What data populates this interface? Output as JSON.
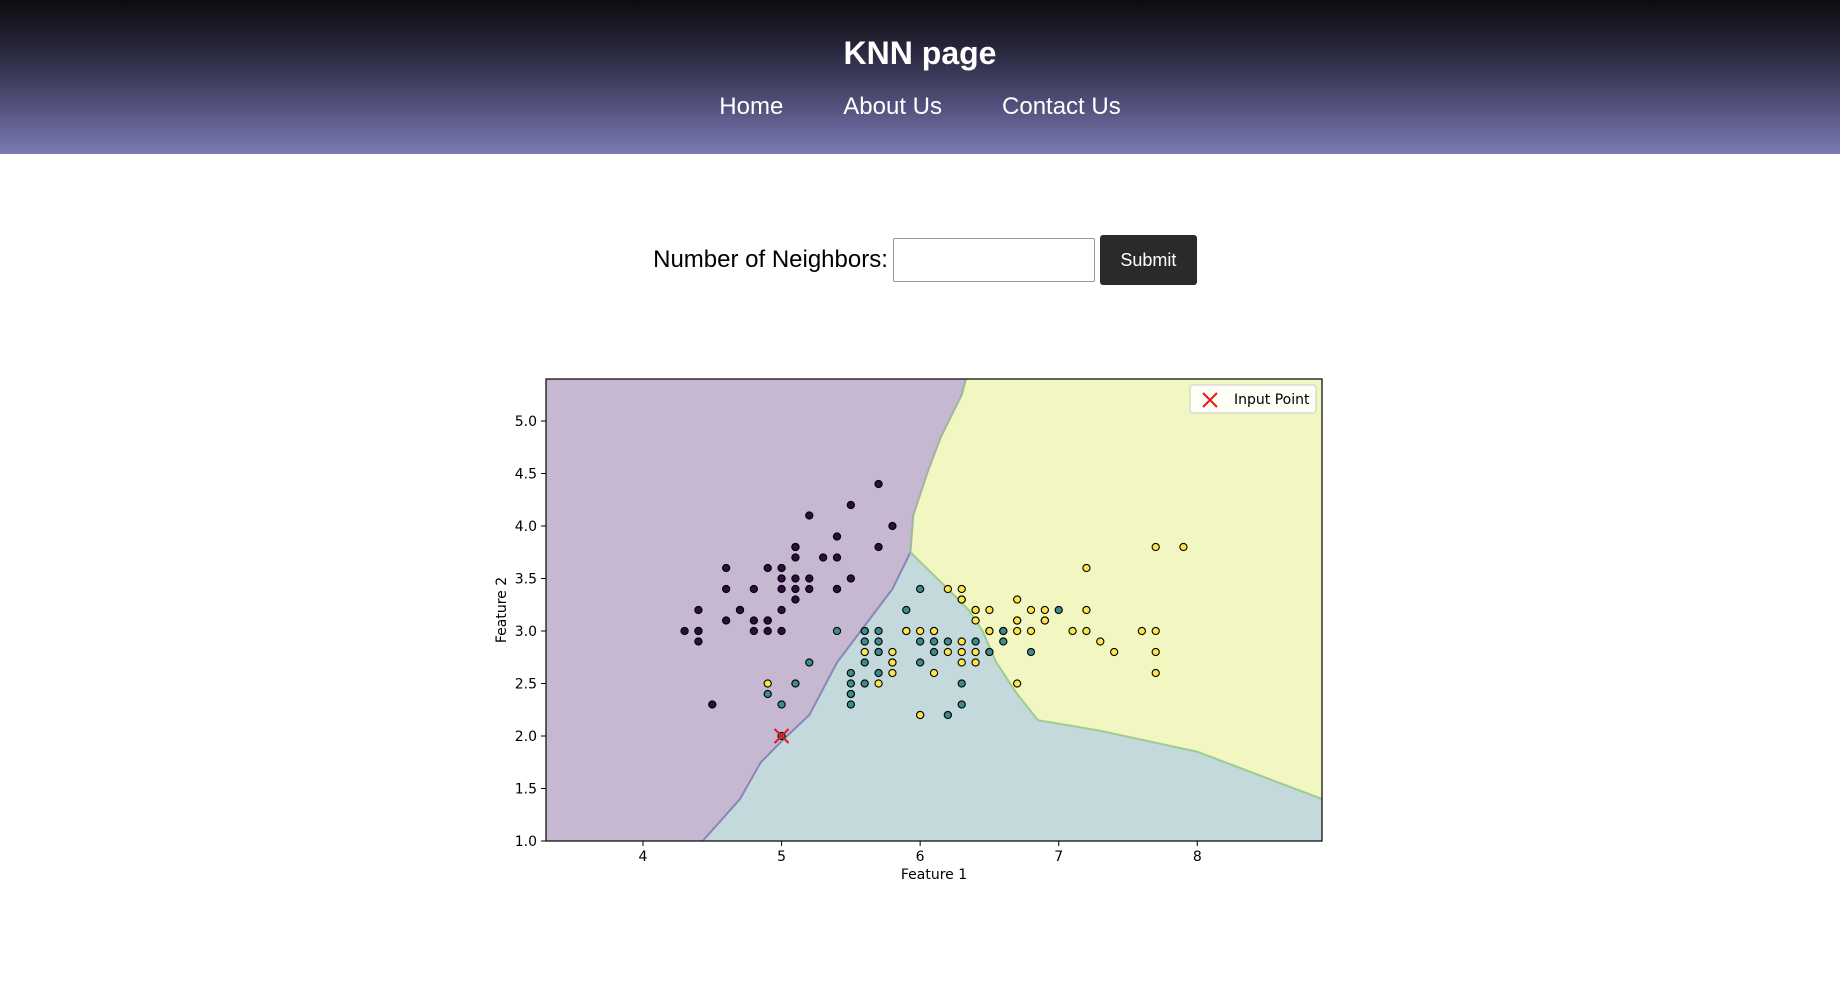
{
  "header": {
    "title": "KNN page",
    "nav": [
      "Home",
      "About Us",
      "Contact Us"
    ]
  },
  "faint_heading": "",
  "form": {
    "label": "Number of Neighbors:",
    "input_value": "",
    "input_placeholder": "",
    "submit_label": "Submit"
  },
  "chart_data": {
    "type": "scatter",
    "xlabel": "Feature 1",
    "ylabel": "Feature 2",
    "xlim": [
      3.3,
      8.9
    ],
    "ylim": [
      1.0,
      5.4
    ],
    "xticks": [
      "4",
      "5",
      "6",
      "7",
      "8"
    ],
    "yticks": [
      "1.0",
      "1.5",
      "2.0",
      "2.5",
      "3.0",
      "3.5",
      "4.0",
      "4.5",
      "5.0"
    ],
    "grid": false,
    "legend_position": "top-right",
    "legend": [
      "Input Point"
    ],
    "region_colors": {
      "class0": "#c5b8d0",
      "class1": "#c3d9dc",
      "class2": "#f2f6c0"
    },
    "point_colors": {
      "class0": "#2e0e3e",
      "class1": "#3e8a8c",
      "class2": "#fbe54a"
    },
    "input_point": {
      "x": 5.0,
      "y": 2.0,
      "color": "#e41a1c"
    },
    "boundaries": {
      "class0_class1": [
        [
          4.43,
          1.0
        ],
        [
          4.7,
          1.4
        ],
        [
          4.85,
          1.75
        ],
        [
          5.0,
          1.95
        ],
        [
          5.2,
          2.2
        ],
        [
          5.4,
          2.7
        ],
        [
          5.6,
          3.05
        ],
        [
          5.8,
          3.4
        ],
        [
          5.93,
          3.75
        ]
      ],
      "class0_class2": [
        [
          5.93,
          3.75
        ],
        [
          5.95,
          4.1
        ],
        [
          6.05,
          4.5
        ],
        [
          6.15,
          4.85
        ],
        [
          6.3,
          5.25
        ],
        [
          6.33,
          5.4
        ]
      ],
      "class1_class2": [
        [
          5.93,
          3.75
        ],
        [
          6.2,
          3.4
        ],
        [
          6.35,
          3.2
        ],
        [
          6.45,
          3.0
        ],
        [
          6.55,
          2.7
        ],
        [
          6.7,
          2.4
        ],
        [
          6.85,
          2.15
        ],
        [
          7.3,
          2.05
        ],
        [
          8.0,
          1.85
        ],
        [
          8.9,
          1.4
        ]
      ]
    },
    "series": [
      {
        "name": "",
        "class": 0,
        "points": [
          [
            5.1,
            3.5
          ],
          [
            4.9,
            3.0
          ],
          [
            4.7,
            3.2
          ],
          [
            4.6,
            3.1
          ],
          [
            5.0,
            3.6
          ],
          [
            5.4,
            3.9
          ],
          [
            4.6,
            3.4
          ],
          [
            5.0,
            3.4
          ],
          [
            4.4,
            2.9
          ],
          [
            4.9,
            3.1
          ],
          [
            5.4,
            3.7
          ],
          [
            4.8,
            3.4
          ],
          [
            4.8,
            3.0
          ],
          [
            4.3,
            3.0
          ],
          [
            5.8,
            4.0
          ],
          [
            5.7,
            4.4
          ],
          [
            5.1,
            3.8
          ],
          [
            5.7,
            3.8
          ],
          [
            5.4,
            3.4
          ],
          [
            5.1,
            3.7
          ],
          [
            4.6,
            3.6
          ],
          [
            5.1,
            3.3
          ],
          [
            5.0,
            3.0
          ],
          [
            5.2,
            3.5
          ],
          [
            5.2,
            3.4
          ],
          [
            4.7,
            3.2
          ],
          [
            5.4,
            3.4
          ],
          [
            5.2,
            4.1
          ],
          [
            5.5,
            4.2
          ],
          [
            5.0,
            3.2
          ],
          [
            5.5,
            3.5
          ],
          [
            4.4,
            3.0
          ],
          [
            5.1,
            3.4
          ],
          [
            4.5,
            2.3
          ],
          [
            4.4,
            3.2
          ],
          [
            5.0,
            3.5
          ],
          [
            5.3,
            3.7
          ],
          [
            5.1,
            3.8
          ],
          [
            4.9,
            3.6
          ],
          [
            4.4,
            3.0
          ],
          [
            4.8,
            3.1
          ],
          [
            4.9,
            3.1
          ]
        ]
      },
      {
        "name": "",
        "class": 1,
        "points": [
          [
            7.0,
            3.2
          ],
          [
            6.4,
            3.2
          ],
          [
            6.9,
            3.1
          ],
          [
            5.5,
            2.3
          ],
          [
            6.5,
            2.8
          ],
          [
            5.7,
            2.8
          ],
          [
            6.3,
            3.3
          ],
          [
            4.9,
            2.4
          ],
          [
            6.6,
            2.9
          ],
          [
            5.2,
            2.7
          ],
          [
            5.0,
            2.0
          ],
          [
            5.9,
            3.0
          ],
          [
            6.0,
            2.2
          ],
          [
            6.1,
            2.9
          ],
          [
            5.6,
            2.9
          ],
          [
            6.7,
            3.1
          ],
          [
            5.6,
            3.0
          ],
          [
            5.8,
            2.7
          ],
          [
            6.2,
            2.2
          ],
          [
            5.6,
            2.5
          ],
          [
            5.9,
            3.2
          ],
          [
            6.1,
            2.8
          ],
          [
            6.3,
            2.5
          ],
          [
            6.4,
            2.9
          ],
          [
            6.6,
            3.0
          ],
          [
            6.8,
            2.8
          ],
          [
            6.0,
            2.9
          ],
          [
            5.7,
            2.6
          ],
          [
            5.5,
            2.4
          ],
          [
            5.5,
            2.4
          ],
          [
            6.0,
            2.7
          ],
          [
            5.4,
            3.0
          ],
          [
            6.0,
            3.4
          ],
          [
            6.3,
            2.3
          ],
          [
            5.6,
            3.0
          ],
          [
            5.5,
            2.5
          ],
          [
            5.5,
            2.6
          ],
          [
            6.1,
            3.0
          ],
          [
            5.0,
            2.3
          ],
          [
            5.6,
            2.7
          ],
          [
            5.7,
            3.0
          ],
          [
            5.7,
            2.9
          ],
          [
            6.2,
            2.9
          ],
          [
            5.1,
            2.5
          ],
          [
            5.7,
            2.8
          ],
          [
            6.5,
            2.8
          ],
          [
            6.6,
            3.0
          ]
        ]
      },
      {
        "name": "",
        "class": 2,
        "points": [
          [
            6.3,
            3.3
          ],
          [
            7.1,
            3.0
          ],
          [
            6.3,
            2.9
          ],
          [
            6.5,
            3.0
          ],
          [
            7.6,
            3.0
          ],
          [
            4.9,
            2.5
          ],
          [
            7.3,
            2.9
          ],
          [
            6.7,
            2.5
          ],
          [
            7.2,
            3.6
          ],
          [
            6.5,
            3.2
          ],
          [
            6.4,
            2.7
          ],
          [
            6.8,
            3.0
          ],
          [
            5.7,
            2.5
          ],
          [
            5.8,
            2.8
          ],
          [
            6.4,
            3.2
          ],
          [
            7.7,
            3.8
          ],
          [
            7.7,
            2.6
          ],
          [
            6.0,
            2.2
          ],
          [
            6.9,
            3.2
          ],
          [
            5.6,
            2.8
          ],
          [
            7.7,
            2.8
          ],
          [
            6.7,
            3.3
          ],
          [
            7.2,
            3.2
          ],
          [
            6.2,
            2.8
          ],
          [
            6.1,
            3.0
          ],
          [
            6.4,
            2.8
          ],
          [
            7.2,
            3.0
          ],
          [
            7.4,
            2.8
          ],
          [
            7.9,
            3.8
          ],
          [
            6.3,
            2.8
          ],
          [
            6.1,
            2.6
          ],
          [
            7.7,
            3.0
          ],
          [
            6.3,
            3.4
          ],
          [
            6.4,
            3.1
          ],
          [
            6.0,
            3.0
          ],
          [
            6.9,
            3.1
          ],
          [
            6.7,
            3.1
          ],
          [
            5.8,
            2.7
          ],
          [
            6.8,
            3.2
          ],
          [
            6.7,
            3.0
          ],
          [
            6.2,
            3.4
          ],
          [
            5.9,
            3.0
          ],
          [
            6.5,
            3.0
          ],
          [
            5.8,
            2.6
          ],
          [
            6.3,
            2.7
          ]
        ]
      }
    ]
  }
}
